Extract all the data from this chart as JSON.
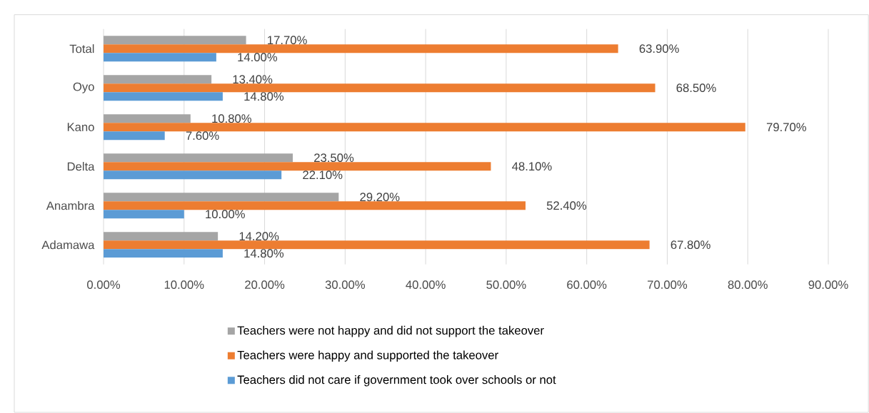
{
  "chart_data": {
    "type": "bar",
    "orientation": "horizontal",
    "categories": [
      "Total",
      "Oyo",
      "Kano",
      "Delta",
      "Anambra",
      "Adamawa"
    ],
    "series": [
      {
        "name": "Teachers were not happy and did not support the takeover",
        "color": "#a5a5a5",
        "values": [
          17.7,
          13.4,
          10.8,
          23.5,
          29.2,
          14.2
        ],
        "value_labels": [
          "17.70%",
          "13.40%",
          "10.80%",
          "23.50%",
          "29.20%",
          "14.20%"
        ]
      },
      {
        "name": "Teachers were happy and supported the takeover",
        "color": "#ed7d31",
        "values": [
          63.9,
          68.5,
          79.7,
          48.1,
          52.4,
          67.8
        ],
        "value_labels": [
          "63.90%",
          "68.50%",
          "79.70%",
          "48.10%",
          "52.40%",
          "67.80%"
        ]
      },
      {
        "name": "Teachers did not care if government took over schools or not",
        "color": "#5b9bd5",
        "values": [
          14.0,
          14.8,
          7.6,
          22.1,
          10.0,
          14.8
        ],
        "value_labels": [
          "14.00%",
          "14.80%",
          "7.60%",
          "22.10%",
          "10.00%",
          "14.80%"
        ]
      }
    ],
    "xlim": [
      0,
      90
    ],
    "xticks": [
      {
        "value": 0,
        "label": "0.00%"
      },
      {
        "value": 10,
        "label": "10.00%"
      },
      {
        "value": 20,
        "label": "20.00%"
      },
      {
        "value": 30,
        "label": "30.00%"
      },
      {
        "value": 40,
        "label": "40.00%"
      },
      {
        "value": 50,
        "label": "50.00%"
      },
      {
        "value": 60,
        "label": "60.00%"
      },
      {
        "value": 70,
        "label": "70.00%"
      },
      {
        "value": 80,
        "label": "80.00%"
      },
      {
        "value": 90,
        "label": "90.00%"
      }
    ],
    "grid": "x",
    "legend": "bottom"
  }
}
